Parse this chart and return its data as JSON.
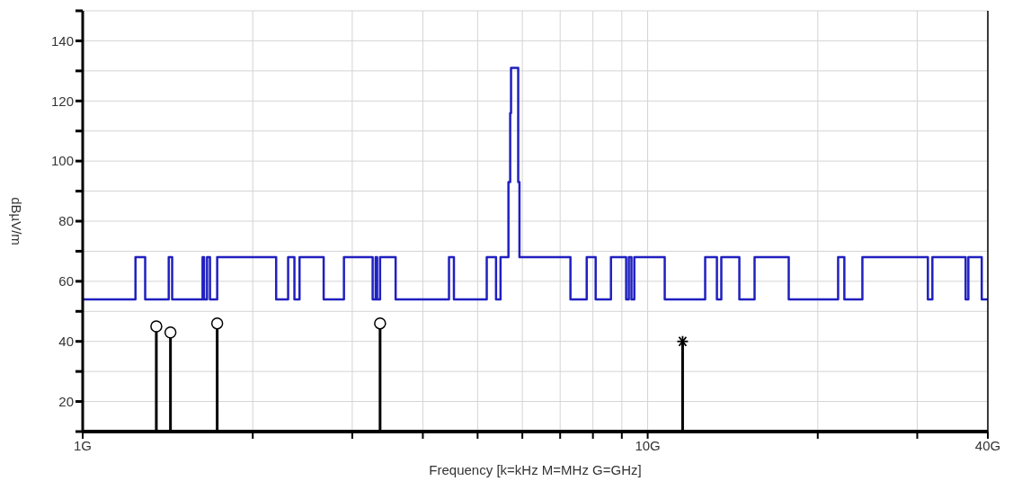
{
  "chart_data": {
    "type": "step",
    "xlabel": "Frequency [k=kHz M=MHz G=GHz]",
    "ylabel": "dBµV/m",
    "log": "x",
    "xlim": [
      1,
      40
    ],
    "xticks": [
      {
        "value": 1,
        "label": "1G"
      },
      {
        "value": 2,
        "label": null
      },
      {
        "value": 3,
        "label": null
      },
      {
        "value": 4,
        "label": null
      },
      {
        "value": 5,
        "label": null
      },
      {
        "value": 6,
        "label": null
      },
      {
        "value": 7,
        "label": null
      },
      {
        "value": 8,
        "label": null
      },
      {
        "value": 9,
        "label": null
      },
      {
        "value": 10,
        "label": "10G"
      },
      {
        "value": 20,
        "label": null
      },
      {
        "value": 30,
        "label": null
      },
      {
        "value": 40,
        "label": "40G"
      }
    ],
    "ylim": [
      10,
      150
    ],
    "yticks": [
      {
        "value": 10,
        "label": null
      },
      20,
      {
        "value": 30,
        "label": null
      },
      40,
      {
        "value": 50,
        "label": null
      },
      60,
      {
        "value": 70,
        "label": null
      },
      80,
      {
        "value": 90,
        "label": null
      },
      100,
      {
        "value": 110,
        "label": null
      },
      120,
      {
        "value": 130,
        "label": null
      },
      140,
      {
        "value": 150,
        "label": null
      }
    ],
    "grid": true,
    "series": [
      {
        "color": "#2020c0",
        "marker": "none",
        "x": [
          1,
          1.24,
          1.29,
          1.42,
          1.44,
          1.63,
          1.64,
          1.66,
          1.68,
          1.73,
          2.2,
          2.31,
          2.37,
          2.42,
          2.67,
          2.9,
          3.26,
          3.3,
          3.32,
          3.36,
          3.58,
          4.45,
          4.54,
          5.19,
          5.39,
          5.49,
          5.67,
          5.71,
          5.73,
          5.9,
          5.93,
          7.3,
          7.8,
          8.09,
          8.61,
          9.16,
          9.26,
          9.36,
          9.47,
          10.72,
          12.64,
          13.26,
          13.5,
          14.53,
          15.46,
          17.77,
          21.73,
          22.29,
          23.99,
          31.33,
          31.91,
          36.54,
          36.95,
          39.02,
          40
        ],
        "values": [
          54,
          68,
          54,
          68,
          54,
          68,
          54,
          68,
          54,
          68,
          54,
          68,
          54,
          68,
          54,
          68,
          54,
          68,
          54,
          68,
          54,
          68,
          54,
          68,
          54,
          68,
          93,
          116,
          131,
          93,
          68,
          54,
          68,
          54,
          68,
          54,
          68,
          54,
          68,
          54,
          68,
          54,
          68,
          54,
          68,
          54,
          68,
          54,
          68,
          54,
          68,
          54,
          68,
          54,
          54
        ]
      },
      {
        "type": "lollipop",
        "color": "#000000",
        "marker": "circle",
        "x": [
          1.35,
          1.43,
          1.73,
          3.36
        ],
        "values": [
          45,
          43,
          46,
          46
        ]
      },
      {
        "type": "lollipop",
        "color": "#000000",
        "marker": "cross",
        "x": [
          11.53
        ],
        "values": [
          40
        ]
      }
    ]
  }
}
